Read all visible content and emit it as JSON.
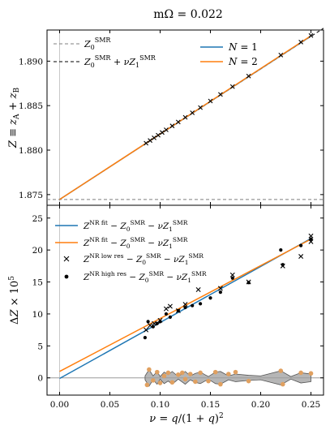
{
  "title": "mΩ = 0.022",
  "chart_data": [
    {
      "type": "line",
      "panel": "top",
      "xlim": [
        -0.0125,
        0.2625
      ],
      "ylim": [
        1.8738,
        1.8935
      ],
      "ylabel": "Z ≡ z_A + z_B",
      "yticks": [
        1.875,
        1.88,
        1.885,
        1.89
      ],
      "yticklabels": [
        "1.875",
        "1.880",
        "1.885",
        "1.890"
      ],
      "legend_placement": "top",
      "series": [
        {
          "name": "Z_0^SMR",
          "style": "dashed",
          "color": "#7f7f7f",
          "x": [
            -0.0125,
            0.2625
          ],
          "y": [
            1.87445,
            1.87445
          ]
        },
        {
          "name": "Z_0^SMR + ν Z_1^SMR",
          "style": "dashed",
          "color": "#000000",
          "x": [
            0.0,
            0.2625
          ],
          "y": [
            1.87445,
            1.8937
          ]
        },
        {
          "name": "N = 1",
          "style": "solid",
          "color": "#1f77b4",
          "x": [
            0.0,
            0.25
          ],
          "y": [
            1.87445,
            1.89282
          ]
        },
        {
          "name": "N = 2",
          "style": "solid",
          "color": "#ff7f0e",
          "x": [
            0.0,
            0.25
          ],
          "y": [
            1.87445,
            1.89285
          ]
        }
      ],
      "points": {
        "marker": "x",
        "x": [
          0.086,
          0.09,
          0.094,
          0.098,
          0.102,
          0.106,
          0.112,
          0.118,
          0.125,
          0.132,
          0.14,
          0.15,
          0.16,
          0.172,
          0.188,
          0.22,
          0.24,
          0.25
        ],
        "y": [
          1.88078,
          1.88108,
          1.88138,
          1.88168,
          1.88198,
          1.88228,
          1.88272,
          1.88316,
          1.88368,
          1.8842,
          1.88478,
          1.88552,
          1.88626,
          1.88714,
          1.88832,
          1.89068,
          1.89214,
          1.89288
        ]
      }
    },
    {
      "type": "line",
      "panel": "bottom",
      "xlim": [
        -0.0125,
        0.2625
      ],
      "ylim": [
        -2.7,
        27.0
      ],
      "xlabel": "ν = q/(1 + q)^2",
      "ylabel": "ΔZ × 10^5",
      "xticks": [
        0.0,
        0.05,
        0.1,
        0.15,
        0.2,
        0.25
      ],
      "xticklabels": [
        "0.00",
        "0.05",
        "0.10",
        "0.15",
        "0.20",
        "0.25"
      ],
      "yticks": [
        0,
        5,
        10,
        15,
        20,
        25
      ],
      "yticklabels": [
        "0",
        "5",
        "10",
        "15",
        "20",
        "25"
      ],
      "legend_placement": "top-left",
      "series": [
        {
          "name": "Z^NR fit − Z_0^SMR − ν Z_1^SMR",
          "style": "solid",
          "color": "#1f77b4",
          "x": [
            0.0,
            0.25
          ],
          "y": [
            -0.1,
            21.8
          ]
        },
        {
          "name": "Z^NR fit − Z_0^SMR − ν Z_1^SMR",
          "style": "solid",
          "color": "#ff7f0e",
          "x": [
            0.0,
            0.25
          ],
          "y": [
            1.0,
            21.7
          ]
        }
      ],
      "points_low_res": {
        "name": "Z^NR low res − Z_0^SMR − ν Z_1^SMR",
        "marker": "x",
        "x": [
          0.086,
          0.09,
          0.094,
          0.1,
          0.106,
          0.11,
          0.118,
          0.125,
          0.138,
          0.16,
          0.172,
          0.188,
          0.222,
          0.24,
          0.25,
          0.25
        ],
        "y": [
          7.5,
          8.2,
          8.5,
          9.0,
          10.8,
          11.2,
          10.5,
          11.5,
          13.8,
          14.0,
          16.1,
          15.0,
          17.5,
          19.0,
          22.2,
          21.3
        ]
      },
      "points_high_res": {
        "name": "Z^NR high res − Z_0^SMR − ν Z_1^SMR",
        "marker": "dot",
        "x": [
          0.085,
          0.088,
          0.093,
          0.097,
          0.1,
          0.106,
          0.11,
          0.118,
          0.125,
          0.132,
          0.14,
          0.15,
          0.16,
          0.172,
          0.188,
          0.22,
          0.222,
          0.24,
          0.25
        ],
        "y": [
          6.3,
          8.8,
          8.0,
          8.5,
          8.8,
          10.0,
          9.5,
          10.5,
          11.0,
          11.3,
          11.6,
          12.5,
          13.4,
          15.6,
          14.9,
          20.0,
          17.7,
          20.7,
          21.7
        ]
      },
      "residuals": {
        "color": "#e0a060",
        "x": [
          0.087,
          0.089,
          0.093,
          0.097,
          0.1,
          0.104,
          0.108,
          0.112,
          0.118,
          0.122,
          0.125,
          0.13,
          0.135,
          0.14,
          0.148,
          0.155,
          0.16,
          0.168,
          0.175,
          0.188,
          0.22,
          0.222,
          0.24,
          0.25
        ],
        "y": [
          -1.1,
          1.3,
          -0.4,
          0.9,
          -0.8,
          0.3,
          0.8,
          -0.7,
          0.5,
          0.8,
          -0.2,
          0.6,
          -0.6,
          0.8,
          -0.5,
          0.9,
          -1.0,
          0.6,
          0.9,
          -0.5,
          1.1,
          -1.0,
          0.8,
          0.7
        ]
      },
      "band": {
        "color": "#9e9e9e",
        "x": [
          0.085,
          0.089,
          0.093,
          0.097,
          0.1,
          0.104,
          0.108,
          0.112,
          0.118,
          0.125,
          0.13,
          0.135,
          0.14,
          0.148,
          0.155,
          0.16,
          0.168,
          0.175,
          0.188,
          0.2,
          0.22,
          0.23,
          0.24,
          0.25
        ],
        "half_width": [
          0.3,
          1.3,
          0.3,
          1.0,
          0.2,
          0.9,
          0.5,
          1.0,
          0.2,
          1.0,
          0.3,
          0.7,
          0.9,
          0.2,
          0.9,
          1.0,
          0.3,
          0.6,
          0.4,
          0.3,
          1.1,
          0.2,
          0.8,
          0.6
        ]
      }
    }
  ]
}
